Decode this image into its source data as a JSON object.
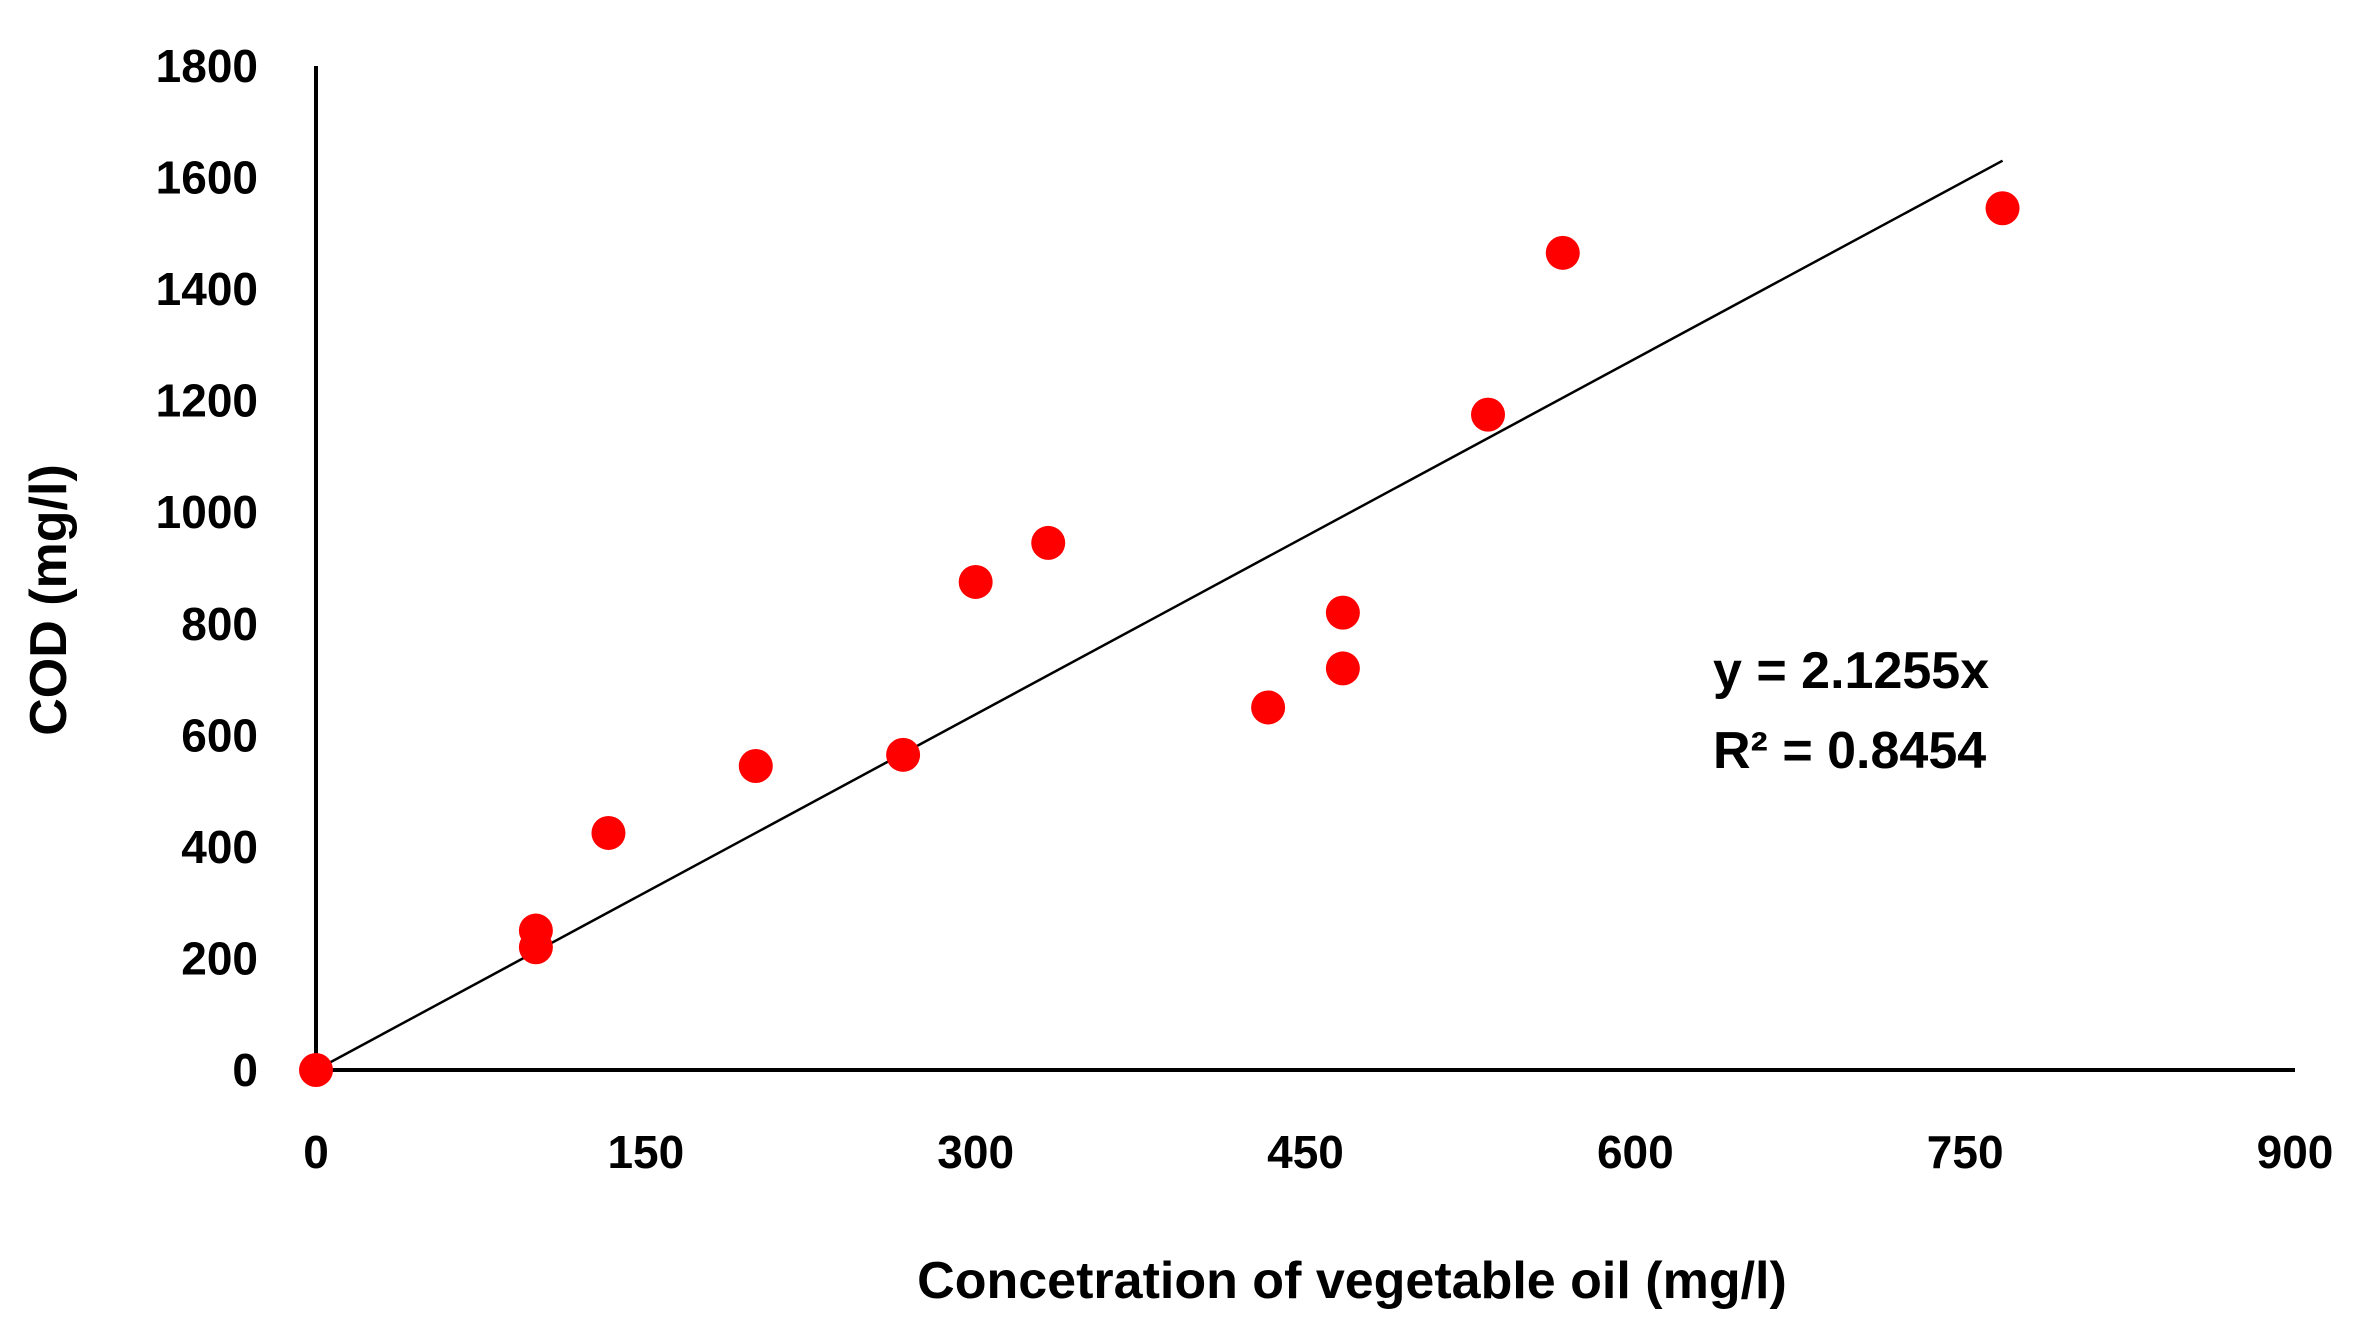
{
  "chart_data": {
    "type": "scatter",
    "title": "",
    "xlabel": "Concetration of vegetable oil (mg/l)",
    "ylabel": "COD (mg/l)",
    "xlim": [
      0,
      900
    ],
    "ylim": [
      0,
      1800
    ],
    "xticks": [
      0,
      150,
      300,
      450,
      600,
      750,
      900
    ],
    "yticks": [
      0,
      200,
      400,
      600,
      800,
      1000,
      1200,
      1400,
      1600,
      1800
    ],
    "grid": false,
    "legend": "none",
    "series": [
      {
        "name": "COD",
        "color": "#ff0000",
        "points": [
          {
            "x": 0,
            "y": 0
          },
          {
            "x": 100,
            "y": 220
          },
          {
            "x": 100,
            "y": 250
          },
          {
            "x": 133,
            "y": 425
          },
          {
            "x": 200,
            "y": 545
          },
          {
            "x": 267,
            "y": 565
          },
          {
            "x": 300,
            "y": 875
          },
          {
            "x": 333,
            "y": 945
          },
          {
            "x": 433,
            "y": 650
          },
          {
            "x": 467,
            "y": 720
          },
          {
            "x": 467,
            "y": 820
          },
          {
            "x": 533,
            "y": 1175
          },
          {
            "x": 567,
            "y": 1465
          },
          {
            "x": 767,
            "y": 1545
          }
        ]
      }
    ],
    "trendline": {
      "type": "linear",
      "slope": 2.1255,
      "intercept": 0,
      "x_range": [
        0,
        767
      ],
      "color": "#000000"
    },
    "annotations": {
      "equation": "y = 2.1255x",
      "r_squared": "R² = 0.8454"
    }
  }
}
